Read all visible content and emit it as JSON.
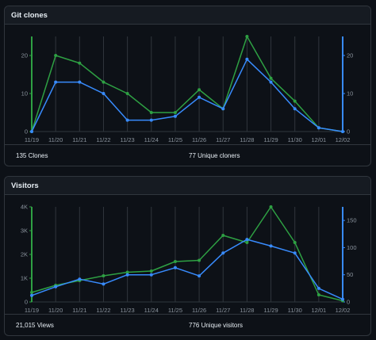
{
  "panels": [
    {
      "title": "Git clones",
      "summary_left": "135 Clones",
      "summary_right": "77 Unique cloners"
    },
    {
      "title": "Visitors",
      "summary_left": "21,015 Views",
      "summary_right": "776 Unique visitors"
    }
  ],
  "colors": {
    "total": "#2ea043",
    "unique": "#388bfd",
    "grid": "#30363d",
    "axis_left": "#2ea043",
    "axis_right": "#388bfd"
  },
  "chart_data": [
    {
      "type": "line",
      "title": "Git clones",
      "categories": [
        "11/19",
        "11/20",
        "11/21",
        "11/22",
        "11/23",
        "11/24",
        "11/25",
        "11/26",
        "11/27",
        "11/28",
        "11/29",
        "11/30",
        "12/01",
        "12/02"
      ],
      "series": [
        {
          "axis": "left",
          "values": [
            0,
            20,
            18,
            13,
            10,
            5,
            5,
            11,
            6,
            25,
            14,
            8,
            1,
            0
          ]
        },
        {
          "axis": "right",
          "values": [
            0,
            13,
            13,
            10,
            3,
            3,
            4,
            9,
            6,
            19,
            13,
            6,
            1,
            0
          ]
        }
      ],
      "y_left": {
        "lim": [
          0,
          25
        ],
        "ticks": [
          0,
          10,
          20
        ],
        "labels": [
          "0",
          "10",
          "20"
        ]
      },
      "y_right": {
        "lim": [
          0,
          25
        ],
        "ticks": [
          0,
          10,
          20
        ],
        "labels": [
          "0",
          "10",
          "20"
        ]
      },
      "grid": "vertical"
    },
    {
      "type": "line",
      "title": "Visitors",
      "categories": [
        "11/19",
        "11/20",
        "11/21",
        "11/22",
        "11/23",
        "11/24",
        "11/25",
        "11/26",
        "11/27",
        "11/28",
        "11/29",
        "11/30",
        "12/01",
        "12/02"
      ],
      "series": [
        {
          "axis": "left",
          "values": [
            400,
            700,
            900,
            1100,
            1250,
            1300,
            1700,
            1750,
            2800,
            2500,
            4000,
            2500,
            300,
            50
          ]
        },
        {
          "axis": "right",
          "values": [
            12,
            28,
            42,
            33,
            50,
            50,
            63,
            48,
            90,
            115,
            103,
            90,
            25,
            5
          ]
        }
      ],
      "y_left": {
        "lim": [
          0,
          4000
        ],
        "ticks": [
          0,
          1000,
          2000,
          3000,
          4000
        ],
        "labels": [
          "0",
          "1K",
          "2K",
          "3K",
          "4K"
        ]
      },
      "y_right": {
        "lim": [
          0,
          175
        ],
        "ticks": [
          0,
          50,
          100,
          150
        ],
        "labels": [
          "0",
          "50",
          "100",
          "150"
        ]
      },
      "grid": "vertical"
    }
  ]
}
